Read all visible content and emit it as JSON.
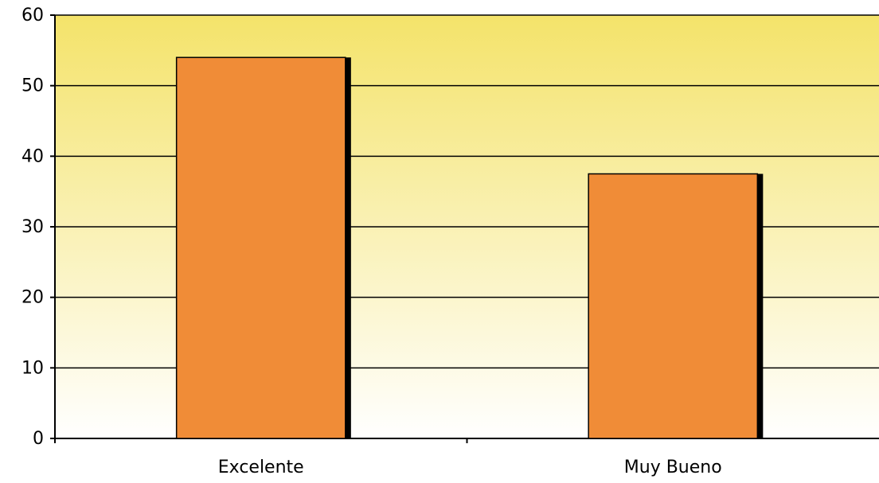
{
  "chart_data": {
    "type": "bar",
    "categories": [
      "Excelente",
      "Muy Bueno"
    ],
    "values": [
      54,
      37.5
    ],
    "title": "",
    "xlabel": "",
    "ylabel": "",
    "ylim": [
      0,
      60
    ],
    "yticks": [
      0,
      10,
      20,
      30,
      40,
      50,
      60
    ],
    "grid": true,
    "legend": "none",
    "colors": {
      "bar_fill": "#F08C37",
      "bar_shadow": "#000000",
      "bg_top": "#F4E36A",
      "bg_bottom": "#FFFFFF",
      "grid": "#000000"
    }
  }
}
